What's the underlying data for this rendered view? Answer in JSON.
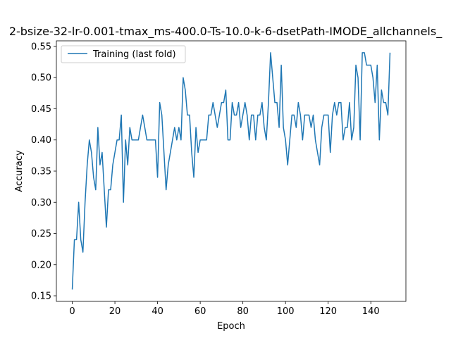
{
  "chart_data": {
    "type": "line",
    "title": "2-bsize-32-lr-0.001-tmax_ms-400.0-Ts-10.0-k-6-dsetPath-IMODE_allchannels_",
    "xlabel": "Epoch",
    "ylabel": "Accuracy",
    "xlim": [
      -7.45,
      156.45
    ],
    "ylim": [
      0.141,
      0.559
    ],
    "x_ticks": [
      0,
      20,
      40,
      60,
      80,
      100,
      120,
      140
    ],
    "y_ticks": [
      0.15,
      0.2,
      0.25,
      0.3,
      0.35,
      0.4,
      0.45,
      0.5,
      0.55
    ],
    "x_tick_labels": [
      "0",
      "20",
      "40",
      "60",
      "80",
      "100",
      "120",
      "140"
    ],
    "y_tick_labels": [
      "0.15",
      "0.20",
      "0.25",
      "0.30",
      "0.35",
      "0.40",
      "0.45",
      "0.50",
      "0.55"
    ],
    "grid": false,
    "legend_position": "top-left",
    "series": [
      {
        "name": "Training (last fold)",
        "color": "#1f77b4",
        "values": [
          0.16,
          0.24,
          0.24,
          0.3,
          0.24,
          0.22,
          0.3,
          0.36,
          0.4,
          0.38,
          0.34,
          0.32,
          0.42,
          0.36,
          0.38,
          0.32,
          0.26,
          0.32,
          0.32,
          0.36,
          0.38,
          0.4,
          0.4,
          0.44,
          0.3,
          0.4,
          0.36,
          0.42,
          0.4,
          0.4,
          0.4,
          0.4,
          0.42,
          0.44,
          0.42,
          0.4,
          0.4,
          0.4,
          0.4,
          0.4,
          0.34,
          0.46,
          0.44,
          0.38,
          0.32,
          0.36,
          0.38,
          0.4,
          0.42,
          0.4,
          0.42,
          0.4,
          0.5,
          0.48,
          0.44,
          0.44,
          0.38,
          0.34,
          0.42,
          0.38,
          0.4,
          0.4,
          0.4,
          0.4,
          0.44,
          0.44,
          0.46,
          0.44,
          0.42,
          0.44,
          0.46,
          0.46,
          0.48,
          0.4,
          0.4,
          0.46,
          0.44,
          0.44,
          0.46,
          0.42,
          0.44,
          0.46,
          0.44,
          0.4,
          0.44,
          0.44,
          0.4,
          0.44,
          0.44,
          0.46,
          0.42,
          0.4,
          0.46,
          0.54,
          0.5,
          0.46,
          0.46,
          0.42,
          0.52,
          0.42,
          0.4,
          0.36,
          0.4,
          0.44,
          0.44,
          0.42,
          0.46,
          0.44,
          0.4,
          0.44,
          0.44,
          0.44,
          0.42,
          0.44,
          0.4,
          0.38,
          0.36,
          0.42,
          0.44,
          0.44,
          0.44,
          0.38,
          0.44,
          0.46,
          0.44,
          0.46,
          0.46,
          0.4,
          0.42,
          0.42,
          0.46,
          0.4,
          0.42,
          0.52,
          0.5,
          0.4,
          0.54,
          0.54,
          0.52,
          0.52,
          0.52,
          0.5,
          0.46,
          0.52,
          0.4,
          0.48,
          0.46,
          0.46,
          0.44,
          0.54
        ]
      }
    ]
  }
}
